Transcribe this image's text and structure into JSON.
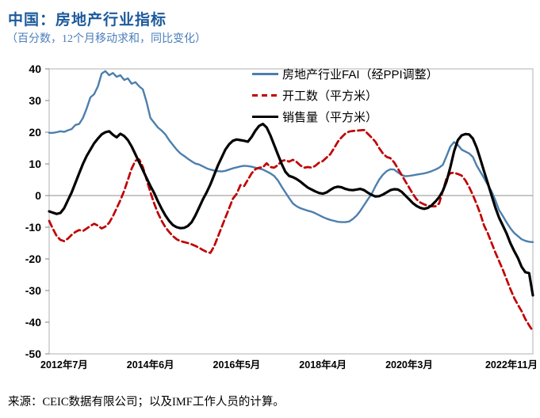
{
  "title": "中国：房地产行业指标",
  "subtitle": "（百分数，12个月移动求和，同比变化）",
  "source": "来源：CEIC数据有限公司；以及IMF工作人员的计算。",
  "colors": {
    "title_blue": "#1d5a9c",
    "subtitle_blue": "#4a7ebb",
    "fai_line": "#4d7fad",
    "starts_line": "#c00000",
    "sales_line": "#000000",
    "frame_gray": "#c3c3c3",
    "zero_line_gray": "#a3a3a3"
  },
  "chart_data": {
    "type": "line",
    "title": "中国：房地产行业指标",
    "subtitle": "（百分数，12个月移动求和，同比变化）",
    "xlabel": "",
    "ylabel": "",
    "ylim": [
      -50,
      40
    ],
    "y_ticks": [
      40,
      30,
      20,
      10,
      0,
      -10,
      -20,
      -30,
      -40,
      -50
    ],
    "grid": "zero-line-only",
    "legend_position": "top-center-inside",
    "x_unit": "months from 2012-03 (monthly data)",
    "x_count": 130,
    "x_tick_labels": [
      {
        "label": "2012年7月",
        "index": 4
      },
      {
        "label": "2014年6月",
        "index": 27
      },
      {
        "label": "2016年5月",
        "index": 50
      },
      {
        "label": "2018年4月",
        "index": 73
      },
      {
        "label": "2020年3月",
        "index": 96
      },
      {
        "label": "2022年11月",
        "index": 128
      }
    ],
    "series": [
      {
        "name": "房地产行业FAI（经PPI调整）",
        "color": "#4d7fad",
        "style": "solid",
        "width": 2.4,
        "values": [
          19.8,
          19.8,
          20.0,
          20.3,
          20.1,
          20.6,
          21.0,
          22.3,
          22.6,
          24.5,
          27.5,
          31.0,
          32.0,
          34.5,
          38.5,
          39.3,
          38.0,
          38.7,
          37.5,
          38.0,
          36.5,
          37.0,
          35.3,
          35.8,
          34.5,
          33.5,
          29.5,
          24.5,
          23.0,
          21.5,
          20.5,
          19.3,
          17.5,
          16.0,
          14.5,
          13.3,
          12.5,
          11.6,
          10.8,
          10.1,
          9.8,
          9.2,
          8.6,
          8.2,
          7.9,
          7.7,
          7.6,
          7.8,
          8.2,
          8.6,
          8.9,
          9.2,
          9.4,
          9.3,
          9.1,
          8.8,
          8.5,
          8.2,
          7.6,
          7.0,
          6.2,
          4.8,
          2.8,
          1.0,
          -0.8,
          -2.5,
          -3.4,
          -4.0,
          -4.4,
          -4.8,
          -5.1,
          -5.6,
          -6.2,
          -6.8,
          -7.3,
          -7.7,
          -8.0,
          -8.3,
          -8.4,
          -8.4,
          -8.2,
          -7.4,
          -6.3,
          -4.8,
          -3.0,
          -1.2,
          0.5,
          2.9,
          5.0,
          6.6,
          7.7,
          8.3,
          8.2,
          7.3,
          6.5,
          6.1,
          6.2,
          6.4,
          6.6,
          6.8,
          7.0,
          7.3,
          7.7,
          8.2,
          8.8,
          9.7,
          12.5,
          15.5,
          16.9,
          16.0,
          14.5,
          13.9,
          13.3,
          12.2,
          9.5,
          7.5,
          5.5,
          3.3,
          1.3,
          -1.5,
          -4.6,
          -6.5,
          -8.5,
          -10.3,
          -11.8,
          -12.8,
          -13.8,
          -14.3,
          -14.6,
          -14.7
        ]
      },
      {
        "name": "开工数（平方米）",
        "color": "#c00000",
        "style": "dashed",
        "width": 2.7,
        "values": [
          -8.0,
          -10.5,
          -12.8,
          -14.0,
          -14.4,
          -13.6,
          -12.4,
          -11.5,
          -10.9,
          -11.2,
          -10.4,
          -9.6,
          -8.9,
          -9.5,
          -10.4,
          -9.8,
          -8.6,
          -6.5,
          -4.0,
          -1.5,
          1.5,
          5.0,
          8.5,
          11.0,
          11.4,
          9.0,
          5.0,
          1.0,
          -2.5,
          -5.5,
          -8.0,
          -10.0,
          -11.5,
          -12.8,
          -13.8,
          -14.4,
          -14.7,
          -15.0,
          -15.4,
          -15.9,
          -16.5,
          -17.2,
          -17.8,
          -18.1,
          -16.0,
          -13.0,
          -10.0,
          -7.0,
          -4.0,
          -1.0,
          0.5,
          3.3,
          3.0,
          5.0,
          7.0,
          8.3,
          8.8,
          8.9,
          10.2,
          9.0,
          8.8,
          9.6,
          10.9,
          11.2,
          10.7,
          11.3,
          10.6,
          9.5,
          8.8,
          9.0,
          8.8,
          9.4,
          10.4,
          10.9,
          12.0,
          13.1,
          15.0,
          17.0,
          18.4,
          19.6,
          20.2,
          20.4,
          20.5,
          20.6,
          20.7,
          19.5,
          18.3,
          17.0,
          15.0,
          13.3,
          12.2,
          11.8,
          10.5,
          8.5,
          6.5,
          4.5,
          2.5,
          0.5,
          -1.2,
          -2.2,
          -2.8,
          -3.2,
          -3.4,
          -3.4,
          -2.5,
          1.5,
          5.5,
          7.1,
          7.2,
          6.8,
          6.3,
          4.8,
          2.7,
          0.2,
          -2.7,
          -5.8,
          -9.5,
          -12.0,
          -15.0,
          -18.0,
          -20.7,
          -23.5,
          -26.5,
          -29.5,
          -32.3,
          -34.5,
          -36.5,
          -39.0,
          -41.0,
          -42.8
        ]
      },
      {
        "name": "销售量（平方米）",
        "color": "#000000",
        "style": "solid",
        "width": 3.2,
        "values": [
          -5.0,
          -5.4,
          -5.8,
          -5.5,
          -4.0,
          -1.5,
          1.0,
          4.0,
          7.0,
          10.0,
          12.5,
          14.5,
          16.5,
          18.0,
          19.3,
          20.0,
          20.3,
          19.2,
          18.4,
          19.5,
          18.8,
          17.5,
          15.5,
          13.0,
          10.5,
          8.0,
          5.5,
          3.0,
          0.8,
          -1.8,
          -4.2,
          -6.3,
          -8.0,
          -9.3,
          -10.0,
          -10.3,
          -10.2,
          -9.6,
          -8.4,
          -6.3,
          -3.8,
          -1.2,
          1.0,
          3.5,
          6.5,
          9.5,
          12.0,
          14.5,
          16.2,
          17.3,
          17.7,
          17.5,
          17.3,
          17.0,
          18.5,
          20.5,
          22.0,
          22.6,
          21.5,
          19.0,
          16.0,
          13.0,
          10.0,
          7.5,
          6.2,
          5.8,
          5.2,
          4.4,
          3.4,
          2.5,
          1.9,
          1.3,
          0.8,
          0.6,
          1.0,
          1.8,
          2.5,
          2.8,
          2.6,
          2.1,
          1.8,
          1.7,
          1.9,
          2.1,
          1.7,
          0.9,
          0.2,
          -0.3,
          -0.2,
          0.3,
          1.0,
          1.7,
          2.0,
          1.9,
          1.2,
          0.0,
          -1.2,
          -2.4,
          -3.3,
          -3.9,
          -4.2,
          -3.9,
          -3.1,
          -1.9,
          -0.5,
          1.5,
          4.5,
          9.0,
          14.0,
          17.5,
          19.0,
          19.4,
          19.3,
          18.0,
          15.2,
          11.5,
          7.6,
          3.8,
          0.0,
          -3.8,
          -7.0,
          -9.5,
          -12.0,
          -15.0,
          -17.5,
          -19.7,
          -22.5,
          -24.2,
          -24.5,
          -31.5
        ]
      }
    ]
  }
}
